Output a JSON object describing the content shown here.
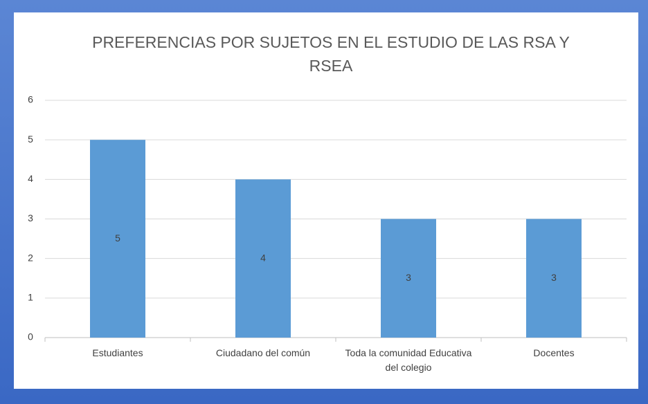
{
  "chart_data": {
    "type": "bar",
    "title": "PREFERENCIAS POR SUJETOS EN EL ESTUDIO DE LAS RSA Y RSEA",
    "categories": [
      "Estudiantes",
      "Ciudadano del común",
      "Toda la comunidad Educativa del colegio",
      "Docentes"
    ],
    "values": [
      5,
      4,
      3,
      3
    ],
    "color": "#5b9bd5",
    "ylim": [
      0,
      6
    ],
    "yticks": [
      0,
      1,
      2,
      3,
      4,
      5,
      6
    ],
    "grid": true
  }
}
